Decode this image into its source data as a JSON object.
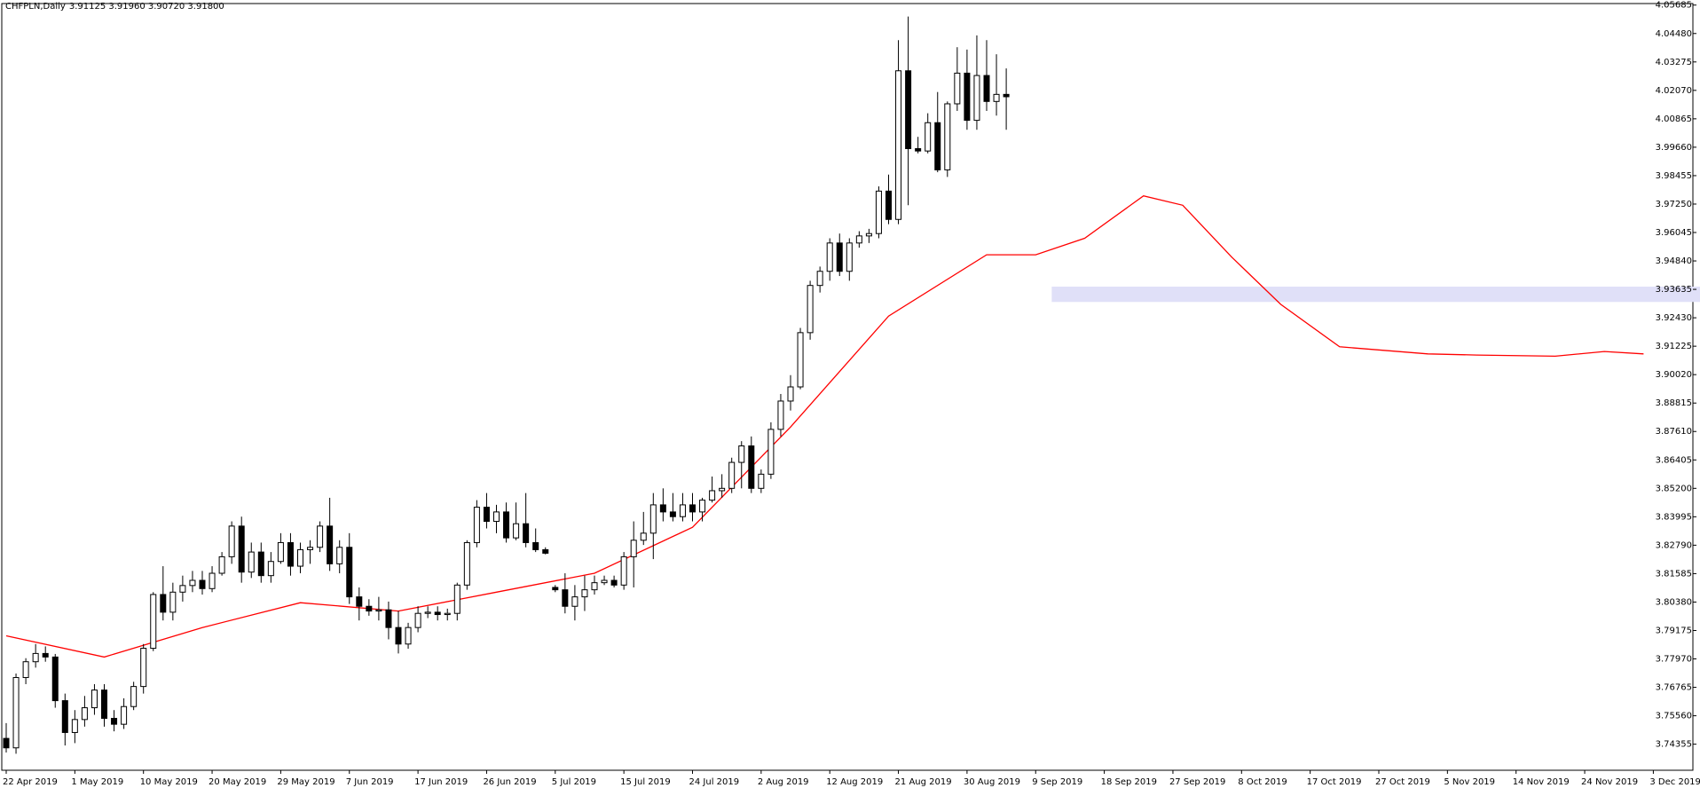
{
  "header": {
    "symbol": "CHFPLN,Daily",
    "ohlc": "3.91125 3.91960 3.90720 3.91800"
  },
  "colors": {
    "ma_line": "#ff0000",
    "zone_fill": "#e0e0f8",
    "candle_up": "#ffffff",
    "candle_down": "#000000",
    "axis": "#000000"
  },
  "chart_data": {
    "type": "candlestick",
    "ylim": [
      3.7325,
      4.0575
    ],
    "y_ticks": [
      "4.05685",
      "4.04480",
      "4.03275",
      "4.02070",
      "4.00865",
      "3.99660",
      "3.98455",
      "3.97250",
      "3.96045",
      "3.94840",
      "3.93635",
      "3.92430",
      "3.91225",
      "3.90020",
      "3.88815",
      "3.87610",
      "3.86405",
      "3.85200",
      "3.83995",
      "3.82790",
      "3.81585",
      "3.80380",
      "3.79175",
      "3.77970",
      "3.76765",
      "3.75560",
      "3.74355"
    ],
    "x_labels": [
      "22 Apr 2019",
      "1 May 2019",
      "10 May 2019",
      "20 May 2019",
      "29 May 2019",
      "7 Jun 2019",
      "17 Jun 2019",
      "26 Jun 2019",
      "5 Jul 2019",
      "15 Jul 2019",
      "24 Jul 2019",
      "2 Aug 2019",
      "12 Aug 2019",
      "21 Aug 2019",
      "30 Aug 2019",
      "9 Sep 2019",
      "18 Sep 2019",
      "27 Sep 2019",
      "8 Oct 2019",
      "17 Oct 2019",
      "27 Oct 2019",
      "5 Nov 2019",
      "14 Nov 2019",
      "24 Nov 2019",
      "3 Dec 2019"
    ],
    "x_label_index": [
      0,
      7,
      14,
      21,
      28,
      35,
      42,
      49,
      56,
      63,
      70,
      77,
      84,
      91,
      98,
      105,
      112,
      119,
      126,
      133,
      140,
      147,
      154,
      161,
      168
    ],
    "resistance_zone": {
      "low": 3.931,
      "high": 3.9375,
      "from_index": 107,
      "to_index": 180
    },
    "candles": [
      [
        3.746,
        3.7525,
        3.74,
        3.742
      ],
      [
        3.742,
        3.7735,
        3.7395,
        3.7718
      ],
      [
        3.7718,
        3.78,
        3.769,
        3.7785
      ],
      [
        3.7785,
        3.786,
        3.776,
        3.782
      ],
      [
        3.782,
        3.785,
        3.7785,
        3.7805
      ],
      [
        3.7805,
        3.7818,
        3.759,
        3.762
      ],
      [
        3.762,
        3.765,
        3.743,
        3.7485
      ],
      [
        3.7485,
        3.758,
        3.744,
        3.754
      ],
      [
        3.754,
        3.764,
        3.751,
        3.759
      ],
      [
        3.759,
        3.769,
        3.756,
        3.7665
      ],
      [
        3.7665,
        3.769,
        3.751,
        3.7545
      ],
      [
        3.7545,
        3.758,
        3.749,
        3.752
      ],
      [
        3.752,
        3.763,
        3.75,
        3.7595
      ],
      [
        3.7595,
        3.77,
        3.758,
        3.768
      ],
      [
        3.768,
        3.786,
        3.765,
        3.7842
      ],
      [
        3.7842,
        3.808,
        3.783,
        3.807
      ],
      [
        3.807,
        3.819,
        3.796,
        3.7995
      ],
      [
        3.7995,
        3.812,
        3.796,
        3.808
      ],
      [
        3.808,
        3.815,
        3.804,
        3.8108
      ],
      [
        3.8108,
        3.817,
        3.808,
        3.813
      ],
      [
        3.813,
        3.817,
        3.807,
        3.8095
      ],
      [
        3.8095,
        3.819,
        3.808,
        3.816
      ],
      [
        3.816,
        3.825,
        3.815,
        3.823
      ],
      [
        3.823,
        3.838,
        3.82,
        3.836
      ],
      [
        3.836,
        3.84,
        3.812,
        3.8165
      ],
      [
        3.8165,
        3.829,
        3.814,
        3.825
      ],
      [
        3.825,
        3.829,
        3.812,
        3.815
      ],
      [
        3.815,
        3.825,
        3.812,
        3.821
      ],
      [
        3.821,
        3.833,
        3.82,
        3.829
      ],
      [
        3.829,
        3.833,
        3.815,
        3.819
      ],
      [
        3.819,
        3.829,
        3.816,
        3.826
      ],
      [
        3.826,
        3.83,
        3.82,
        3.827
      ],
      [
        3.827,
        3.838,
        3.825,
        3.836
      ],
      [
        3.836,
        3.848,
        3.817,
        3.82
      ],
      [
        3.82,
        3.83,
        3.816,
        3.827
      ],
      [
        3.827,
        3.833,
        3.803,
        3.806
      ],
      [
        3.806,
        3.81,
        3.796,
        3.802
      ],
      [
        3.802,
        3.805,
        3.798,
        3.8
      ],
      [
        3.8,
        3.806,
        3.796,
        3.8005
      ],
      [
        3.8005,
        3.804,
        3.788,
        3.793
      ],
      [
        3.793,
        3.8,
        3.782,
        3.786
      ],
      [
        3.786,
        3.795,
        3.784,
        3.793
      ],
      [
        3.793,
        3.802,
        3.791,
        3.799
      ],
      [
        3.799,
        3.802,
        3.797,
        3.7995
      ],
      [
        3.7995,
        3.802,
        3.796,
        3.7985
      ],
      [
        3.7985,
        3.801,
        3.796,
        3.799
      ],
      [
        3.799,
        3.812,
        3.796,
        3.811
      ],
      [
        3.811,
        3.83,
        3.809,
        3.829
      ],
      [
        3.829,
        3.847,
        3.827,
        3.844
      ],
      [
        3.844,
        3.85,
        3.835,
        3.838
      ],
      [
        3.838,
        3.845,
        3.833,
        3.842
      ],
      [
        3.842,
        3.846,
        3.829,
        3.831
      ],
      [
        3.831,
        3.846,
        3.83,
        3.837
      ],
      [
        3.837,
        3.85,
        3.827,
        3.829
      ],
      [
        3.829,
        3.835,
        3.825,
        3.826
      ],
      [
        3.826,
        3.827,
        3.824,
        3.8245
      ],
      [
        3.81,
        3.811,
        3.808,
        3.809
      ],
      [
        3.809,
        3.816,
        3.799,
        3.802
      ],
      [
        3.802,
        3.811,
        3.796,
        3.806
      ],
      [
        3.806,
        3.815,
        3.8,
        3.809
      ],
      [
        3.809,
        3.815,
        3.807,
        3.812
      ],
      [
        3.812,
        3.815,
        3.811,
        3.813
      ],
      [
        3.813,
        3.815,
        3.81,
        3.811
      ],
      [
        3.811,
        3.825,
        3.809,
        3.823
      ],
      [
        3.823,
        3.838,
        3.81,
        3.83
      ],
      [
        3.83,
        3.842,
        3.828,
        3.833
      ],
      [
        3.833,
        3.85,
        3.822,
        3.845
      ],
      [
        3.845,
        3.852,
        3.838,
        3.842
      ],
      [
        3.842,
        3.85,
        3.838,
        3.84
      ],
      [
        3.84,
        3.85,
        3.838,
        3.845
      ],
      [
        3.845,
        3.85,
        3.838,
        3.842
      ],
      [
        3.842,
        3.848,
        3.838,
        3.847
      ],
      [
        3.847,
        3.857,
        3.846,
        3.851
      ],
      [
        3.851,
        3.858,
        3.848,
        3.852
      ],
      [
        3.852,
        3.865,
        3.85,
        3.863
      ],
      [
        3.863,
        3.872,
        3.852,
        3.87
      ],
      [
        3.87,
        3.874,
        3.85,
        3.852
      ],
      [
        3.852,
        3.86,
        3.85,
        3.858
      ],
      [
        3.858,
        3.88,
        3.856,
        3.877
      ],
      [
        3.877,
        3.892,
        3.874,
        3.889
      ],
      [
        3.889,
        3.9,
        3.885,
        3.895
      ],
      [
        3.895,
        3.92,
        3.894,
        3.918
      ],
      [
        3.918,
        3.94,
        3.915,
        3.938
      ],
      [
        3.938,
        3.946,
        3.935,
        3.944
      ],
      [
        3.944,
        3.958,
        3.94,
        3.956
      ],
      [
        3.956,
        3.96,
        3.942,
        3.944
      ],
      [
        3.944,
        3.958,
        3.94,
        3.956
      ],
      [
        3.956,
        3.961,
        3.954,
        3.959
      ],
      [
        3.959,
        3.962,
        3.956,
        3.96
      ],
      [
        3.96,
        3.98,
        3.958,
        3.978
      ],
      [
        3.978,
        3.985,
        3.964,
        3.966
      ],
      [
        3.966,
        4.042,
        3.964,
        4.029
      ],
      [
        4.029,
        4.052,
        3.972,
        3.996
      ],
      [
        3.996,
        4.001,
        3.994,
        3.995
      ],
      [
        3.995,
        4.011,
        3.994,
        4.007
      ],
      [
        4.007,
        4.02,
        3.986,
        3.987
      ],
      [
        3.987,
        4.016,
        3.984,
        4.015
      ],
      [
        4.015,
        4.039,
        4.012,
        4.028
      ],
      [
        4.028,
        4.038,
        4.004,
        4.008
      ],
      [
        4.008,
        4.044,
        4.004,
        4.027
      ],
      [
        4.027,
        4.042,
        4.012,
        4.016
      ],
      [
        4.016,
        4.036,
        4.01,
        4.019
      ],
      [
        4.019,
        4.03,
        4.004,
        4.018
      ]
    ],
    "ma_line": [
      [
        0,
        3.7895
      ],
      [
        10,
        3.7805
      ],
      [
        20,
        3.793
      ],
      [
        30,
        3.8035
      ],
      [
        40,
        3.8
      ],
      [
        50,
        3.808
      ],
      [
        60,
        3.816
      ],
      [
        70,
        3.8355
      ],
      [
        80,
        3.878
      ],
      [
        90,
        3.925
      ],
      [
        100,
        3.951
      ],
      [
        105,
        3.951
      ],
      [
        110,
        3.958
      ],
      [
        116,
        3.976
      ],
      [
        120,
        3.972
      ],
      [
        125,
        3.95
      ],
      [
        130,
        3.93
      ],
      [
        136,
        3.912
      ],
      [
        145,
        3.909
      ],
      [
        150,
        3.9085
      ],
      [
        158,
        3.908
      ],
      [
        163,
        3.91
      ],
      [
        167,
        3.909
      ]
    ]
  }
}
